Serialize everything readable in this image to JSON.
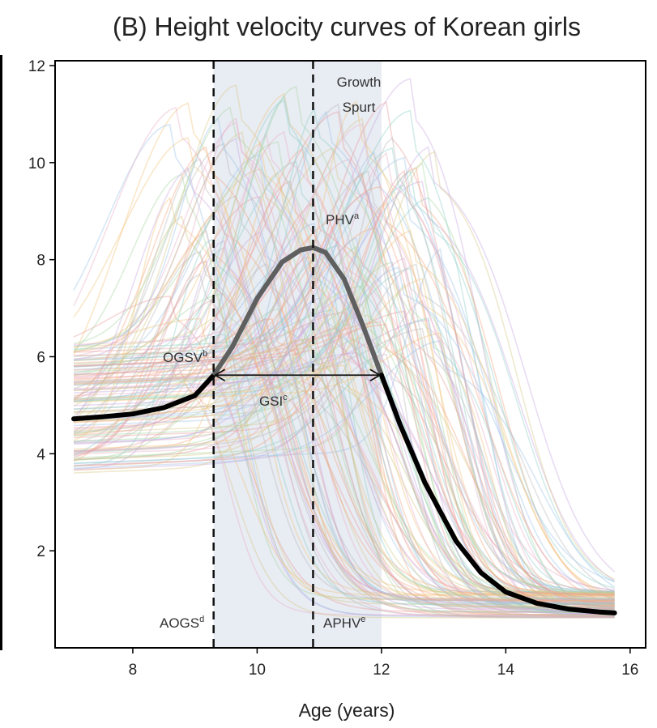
{
  "chart_data": {
    "type": "line",
    "title": "(B) Height velocity curves of Korean girls",
    "xlabel": "Age (years)",
    "ylabel": "",
    "xlim": [
      6.75,
      16.25
    ],
    "ylim": [
      0,
      12.1
    ],
    "xticks": [
      8,
      10,
      12,
      14,
      16
    ],
    "yticks": [
      2,
      4,
      6,
      8,
      10,
      12
    ],
    "grid": false,
    "legend": "none",
    "growth_spurt_span": [
      9.3,
      12.0
    ],
    "shading_color": "#e8ecf3",
    "mean_curve": {
      "color": "#000000",
      "peak_color": "#5f5f5f",
      "x": [
        7.05,
        7.5,
        8.0,
        8.5,
        9.0,
        9.3,
        9.6,
        10.0,
        10.4,
        10.7,
        10.9,
        11.1,
        11.4,
        11.7,
        12.0,
        12.3,
        12.7,
        13.2,
        13.6,
        14.0,
        14.5,
        15.0,
        15.5,
        15.75
      ],
      "y": [
        4.72,
        4.76,
        4.82,
        4.95,
        5.2,
        5.62,
        6.2,
        7.2,
        7.95,
        8.2,
        8.25,
        8.15,
        7.6,
        6.65,
        5.62,
        4.6,
        3.4,
        2.2,
        1.55,
        1.15,
        0.92,
        0.8,
        0.74,
        0.72
      ]
    },
    "annotations": {
      "growth_spurt_line1": "Growth",
      "growth_spurt_line2": "Spurt",
      "phv": "PHV",
      "phv_sup": "a",
      "ogsv": "OGSV",
      "ogsv_sup": "b",
      "gsi": "GSI",
      "gsi_sup": "c",
      "aogs": "AOGS",
      "aogs_sup": "d",
      "aphv": "APHV",
      "aphv_sup": "e"
    },
    "markers": {
      "aogs_x": 9.3,
      "aphv_x": 10.9,
      "ogsv_y": 5.62,
      "gsi_from": 9.3,
      "gsi_to": 12.0,
      "gsi_y": 5.62
    },
    "individual_curves_note": "many thin translucent individual curves",
    "individual_curve_colors": [
      "#e89a9a",
      "#9ac4e8",
      "#a8d8a0",
      "#f0c27a",
      "#c8a8e0",
      "#e8b0c8",
      "#8fd0c8",
      "#d8c888",
      "#b8b8b8",
      "#f4a582"
    ]
  }
}
